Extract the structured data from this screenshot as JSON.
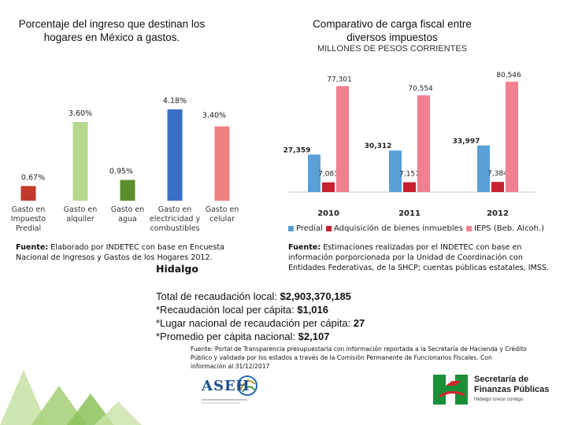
{
  "chart_data": [
    {
      "type": "bar",
      "title": "Porcentaje del ingreso que destinan los hogares en México a gastos.",
      "categories": [
        "Gasto en Impuesto Predial",
        "Gasto en alquiler",
        "Gasto en agua",
        "Gasto en electricidad y combustibles",
        "Gasto en celular"
      ],
      "category_lines": [
        [
          "Gasto en",
          "Impuesto",
          "Predial"
        ],
        [
          "Gasto en",
          "alquiler"
        ],
        [
          "Gasto en",
          "agua"
        ],
        [
          "Gasto en",
          "electricidad y",
          "combustibles"
        ],
        [
          "Gasto en",
          "celular"
        ]
      ],
      "values": [
        0.67,
        3.6,
        0.95,
        4.18,
        3.4
      ],
      "value_labels": [
        "0.67%",
        "3.60%",
        "0.95%",
        "4.18%",
        "3.40%"
      ],
      "colors": [
        "#c0392b",
        "#b5d98c",
        "#5b8f2e",
        "#3a6fc4",
        "#f07f7f"
      ],
      "ylim": [
        0,
        4.5
      ]
    },
    {
      "type": "bar",
      "title": "Comparativo de carga fiscal entre diversos impuestos",
      "subtitle": "MILLONES DE PESOS CORRIENTES",
      "categories": [
        "2010",
        "2011",
        "2012"
      ],
      "series": [
        {
          "name": "Predial",
          "color": "#5aa0d8",
          "values": [
            27359,
            30312,
            33997
          ],
          "labels": [
            "27,359",
            "30,312",
            "33,997"
          ]
        },
        {
          "name": "Adquisición de bienes inmuebles",
          "color": "#c8202f",
          "values": [
            7083,
            7157,
            7384
          ],
          "labels": [
            "7,083",
            "7,157",
            "7,384"
          ]
        },
        {
          "name": "IEPS (Beb. Alcoh.)",
          "color": "#f07f8f",
          "values": [
            77301,
            70554,
            80546
          ],
          "labels": [
            "77,301",
            "70,554",
            "80,546"
          ]
        }
      ],
      "ylim": [
        0,
        85000
      ]
    }
  ],
  "texts": {
    "left_title": "Porcentaje del ingreso que destinan los hogares en México a gastos.",
    "right_title": "Comparativo de carga fiscal entre diversos impuestos",
    "right_subtitle": "MILLONES DE PESOS CORRIENTES",
    "left_source_label": "Fuente:",
    "left_source_text": " Elaborado por INDETEC con base en Encuesta Nacional de Ingresos y Gastos de los Hogares 2012.",
    "right_source_label": "Fuente:",
    "right_source_text": " Estimaciones realizadas por el INDETEC con base en información porporcionada por la Unidad de Coordinación con Entidades Federativas, de la SHCP; cuentas públicas estatales, IMSS.",
    "state": "Hidalgo"
  },
  "stats": [
    {
      "label": "Total de recaudación local: ",
      "value": "$2,903,370,185"
    },
    {
      "label": "*Recaudación local per cápita: ",
      "value": "$1,016"
    },
    {
      "label": "*Lugar nacional de recaudación per cápita: ",
      "value": "27"
    },
    {
      "label": "*Promedio per cápita nacional: ",
      "value": "$2,107"
    }
  ],
  "footnote": "Fuente: Portal de Transparencia presupuestaria con información reportada a la Secretaría de Hacienda y Crédito Público y validada por los estados a través de la Comisión Permanente de Funcionarios Fiscales. Con información al 31/12/2017",
  "logos": {
    "asej": "ASEH",
    "secretaria_line1": "Secretaría de",
    "secretaria_line2": "Finanzas Públicas",
    "secretaria_tagline": "Hidalgo crece contigo"
  },
  "colors": {
    "green_light": "#b5d98c",
    "green_dark": "#4a9a3a",
    "logo_green": "#1a8f3a",
    "logo_red": "#d22630"
  }
}
